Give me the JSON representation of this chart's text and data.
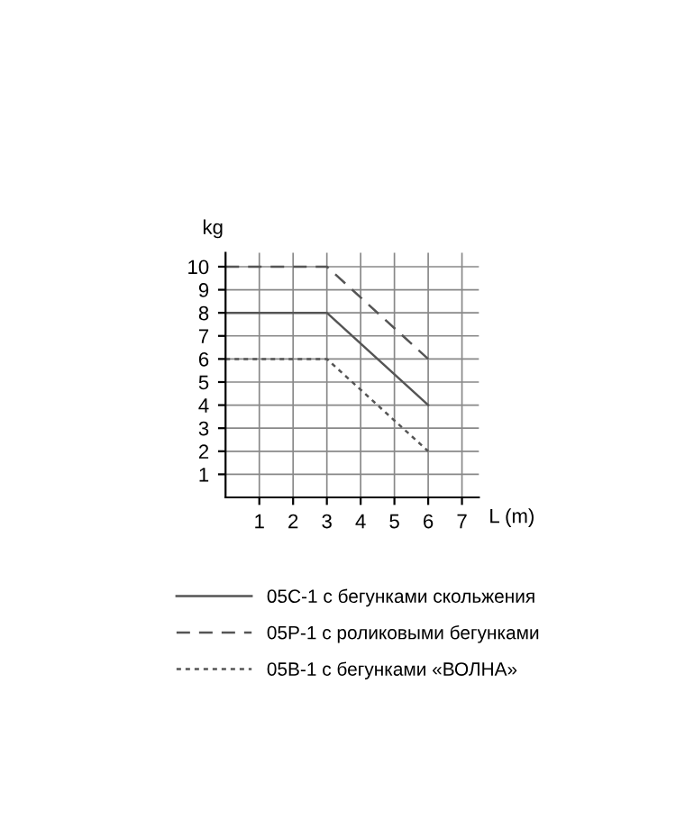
{
  "chart_data": {
    "type": "line",
    "xlabel": "L (m)",
    "ylabel": "kg",
    "x": [
      0,
      3,
      6
    ],
    "series": [
      {
        "name": "05С-1 с бегунками скольжения",
        "color": "#555555",
        "values": [
          8,
          8,
          4
        ],
        "line_style": "solid"
      },
      {
        "name": "05Р-1 с роликовыми бегунками",
        "color": "#555555",
        "values": [
          10,
          10,
          6
        ],
        "line_style": "dashed"
      },
      {
        "name": "05В-1 с бегунками «ВОЛНА»",
        "color": "#555555",
        "values": [
          6,
          6,
          2
        ],
        "line_style": "dotted"
      }
    ],
    "xlim": [
      0,
      7.5
    ],
    "ylim": [
      0,
      10.6
    ],
    "xticks": [
      1,
      2,
      3,
      4,
      5,
      6,
      7
    ],
    "yticks": [
      1,
      2,
      3,
      4,
      5,
      6,
      7,
      8,
      9,
      10
    ],
    "grid": true,
    "legend": "bottom"
  }
}
